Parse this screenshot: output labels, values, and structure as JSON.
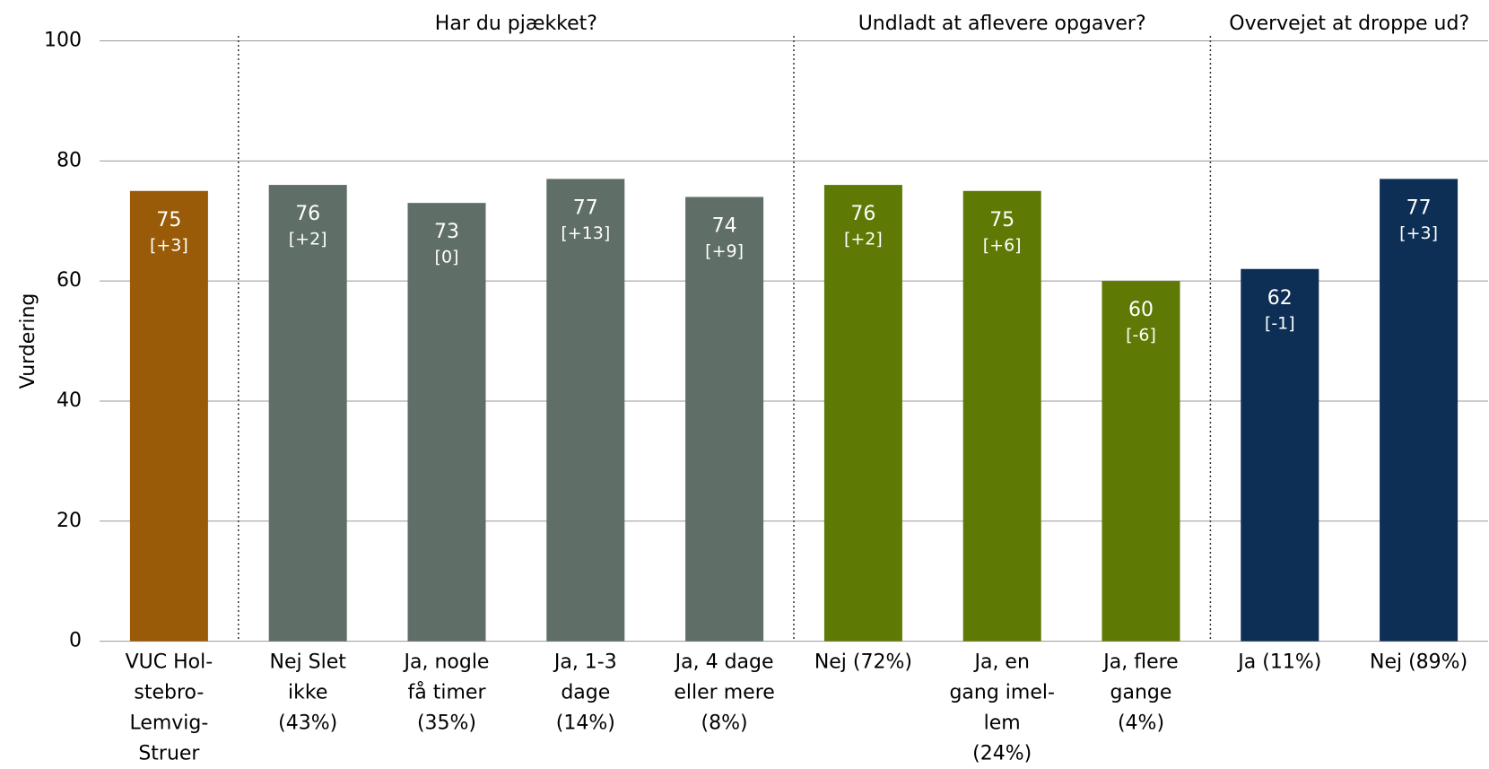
{
  "chart_data": {
    "type": "bar",
    "y_label": "Vurdering",
    "ylim": [
      0,
      100
    ],
    "yticks": [
      0,
      20,
      40,
      60,
      80,
      100
    ],
    "grid": true,
    "groups": [
      {
        "color": "#9a5b08",
        "categories": [
          [
            "VUC Hol-",
            "stebro-",
            "Lemvig-",
            "Struer"
          ]
        ],
        "values": [
          75
        ],
        "changes": [
          "[+3]"
        ]
      },
      {
        "title": "Har du pjækket?",
        "color": "#5f6e67",
        "categories": [
          [
            "Nej Slet",
            "ikke",
            "(43%)"
          ],
          [
            "Ja, nogle",
            "få timer",
            "(35%)"
          ],
          [
            "Ja, 1-3",
            "dage",
            "(14%)"
          ],
          [
            "Ja, 4 dage",
            "eller mere",
            "(8%)"
          ]
        ],
        "values": [
          76,
          73,
          77,
          74
        ],
        "changes": [
          "[+2]",
          "[0]",
          "[+13]",
          "[+9]"
        ]
      },
      {
        "title": "Undladt at aflevere opgaver?",
        "color": "#5e7a05",
        "categories": [
          [
            "Nej (72%)"
          ],
          [
            "Ja, en",
            "gang imel-",
            "lem",
            "(24%)"
          ],
          [
            "Ja, flere",
            "gange",
            "(4%)"
          ]
        ],
        "values": [
          76,
          75,
          60
        ],
        "changes": [
          "[+2]",
          "[+6]",
          "[-6]"
        ]
      },
      {
        "title": "Overvejet at droppe ud?",
        "color": "#0d2f55",
        "categories": [
          [
            "Ja (11%)"
          ],
          [
            "Nej (89%)"
          ]
        ],
        "values": [
          62,
          77
        ],
        "changes": [
          "[-1]",
          "[+3]"
        ]
      }
    ]
  }
}
